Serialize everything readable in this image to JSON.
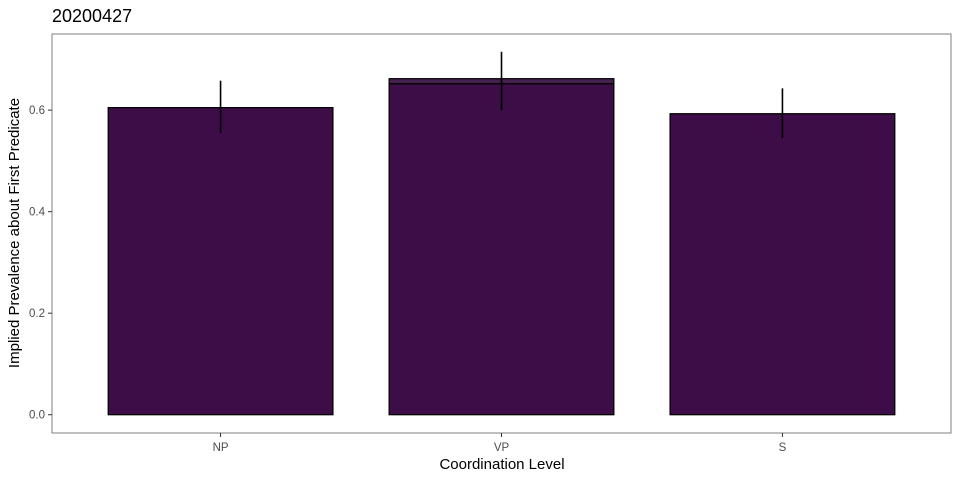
{
  "chart_data": {
    "type": "bar",
    "title": "20200427",
    "xlabel": "Coordination Level",
    "ylabel": "Implied Prevalence about First Predicate",
    "categories": [
      "NP",
      "VP",
      "S"
    ],
    "values": [
      0.605,
      0.652,
      0.593
    ],
    "stacked_top": [
      0.605,
      0.662,
      0.593
    ],
    "error_low": [
      0.555,
      0.6,
      0.545
    ],
    "error_high": [
      0.658,
      0.715,
      0.643
    ],
    "y_ticks": [
      "0.0",
      "0.2",
      "0.4",
      "0.6"
    ],
    "y_tick_values": [
      0,
      0.2,
      0.4,
      0.6
    ],
    "ylim": [
      -0.036,
      0.75
    ],
    "grid": false,
    "legend": "none",
    "colors": {
      "bar_fill": "#3c0d46",
      "bar_fill_upper": "#46204f",
      "bar_stroke": "#000000",
      "panel_border": "#7f7f7f",
      "errorbar": "#000000"
    }
  }
}
